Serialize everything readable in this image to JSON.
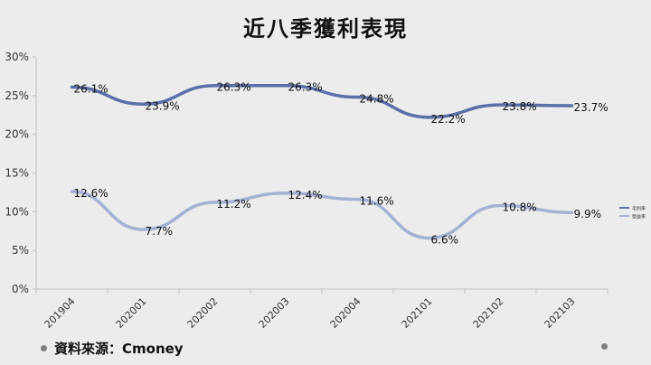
{
  "title": "近八季獲利表現",
  "source_label": "資料來源：Cmoney",
  "chart_data": {
    "type": "line",
    "categories": [
      "201904",
      "202001",
      "202002",
      "202003",
      "202004",
      "202101",
      "202102",
      "202103"
    ],
    "ylim": [
      0,
      30
    ],
    "yticks": [
      0,
      5,
      10,
      15,
      20,
      25,
      30
    ],
    "ytick_labels": [
      "0%",
      "5%",
      "10%",
      "15%",
      "20%",
      "25%",
      "30%"
    ],
    "grid": false,
    "legend_position": "right",
    "series": [
      {
        "name": "毛利率",
        "color": "#5b6fa8",
        "values": [
          26.1,
          23.9,
          26.3,
          26.3,
          24.8,
          22.2,
          23.8,
          23.7
        ],
        "labels": [
          "26.1%",
          "23.9%",
          "26.3%",
          "26.3%",
          "24.8%",
          "22.2%",
          "23.8%",
          "23.7%"
        ]
      },
      {
        "name": "營益率",
        "color": "#a3b1d3",
        "values": [
          12.6,
          7.7,
          11.2,
          12.4,
          11.6,
          6.6,
          10.8,
          9.9
        ],
        "labels": [
          "12.6%",
          "7.7%",
          "11.2%",
          "12.4%",
          "11.6%",
          "6.6%",
          "10.8%",
          "9.9%"
        ]
      }
    ]
  }
}
